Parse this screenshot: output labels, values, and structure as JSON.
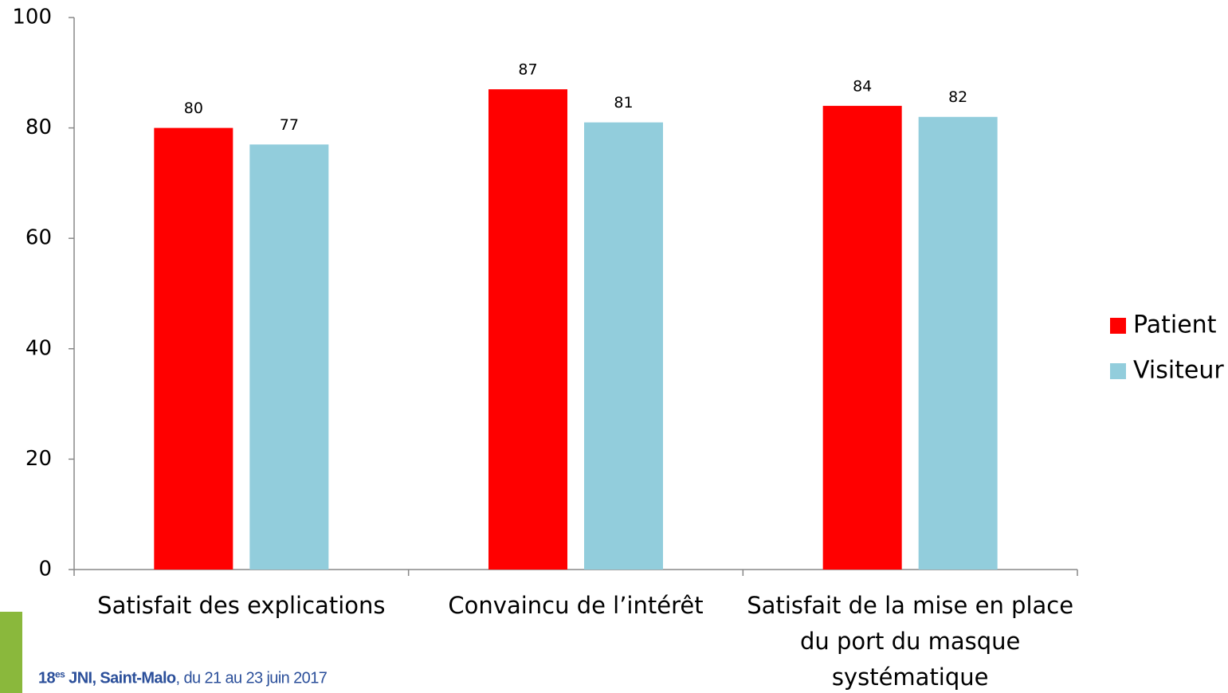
{
  "chart_data": {
    "type": "bar",
    "categories": [
      "Satisfait des explications",
      "Convaincu de l’intérêt",
      "Satisfait de la mise en place\ndu port du masque\nsystématique"
    ],
    "series": [
      {
        "name": "Patient",
        "color": "#ff0000",
        "values": [
          80,
          87,
          84
        ]
      },
      {
        "name": "Visiteur",
        "color": "#92cddc",
        "values": [
          77,
          81,
          82
        ]
      }
    ],
    "ylim": [
      0,
      100
    ],
    "yticks": [
      0,
      20,
      40,
      60,
      80,
      100
    ],
    "grid": false,
    "legend": "right"
  },
  "footer": {
    "number": "18",
    "superscript": "es",
    "event": "JNI, Saint-Malo",
    "dates": ", du 21 au 23 juin 2017"
  }
}
